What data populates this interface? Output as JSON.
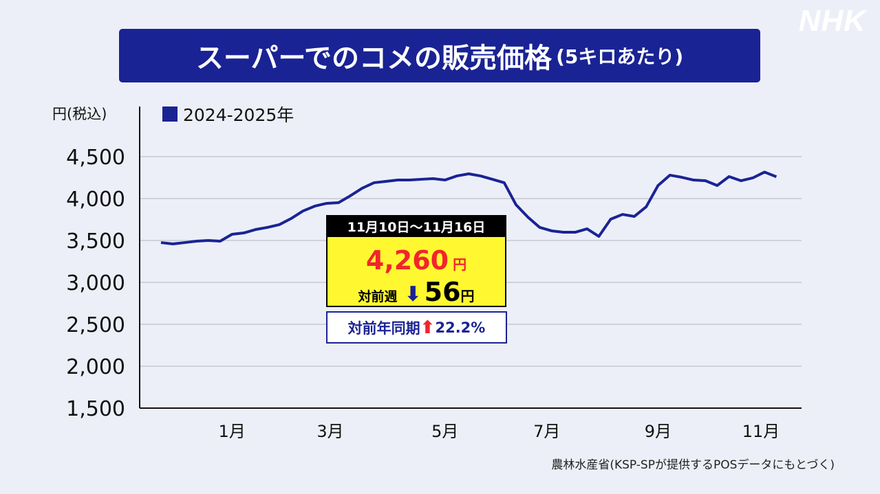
{
  "logo": "NHK",
  "title": {
    "main": "スーパーでのコメの販売価格",
    "sub": "(5キロあたり)"
  },
  "source": "農林水産省(KSP-SPが提供するPOSデータにもとづく)",
  "callout": {
    "period": "11月10日～11月16日",
    "price": "4,260",
    "price_unit": "円",
    "week_label": "対前週",
    "week_change": "56",
    "week_unit": "円",
    "week_direction": "down",
    "year_label": "対前年同期",
    "year_change": "22.2%",
    "year_direction": "up"
  },
  "colors": {
    "line": "#1a2394",
    "title_bg": "#1a2394",
    "highlight": "#f2252c",
    "callout_bg": "#fff830"
  },
  "chart_data": {
    "type": "line",
    "title": "スーパーでのコメの販売価格(5キロあたり)",
    "ylabel": "円(税込)",
    "ylim": [
      1500,
      4500
    ],
    "yticks": [
      1500,
      2000,
      2500,
      3000,
      3500,
      4000,
      4500
    ],
    "ytick_labels": [
      "1,500",
      "2,000",
      "2,500",
      "3,000",
      "3,500",
      "4,000",
      "4,500"
    ],
    "xticks": [
      {
        "label": "1月",
        "index": 6
      },
      {
        "label": "3月",
        "index": 14.3
      },
      {
        "label": "5月",
        "index": 24
      },
      {
        "label": "7月",
        "index": 32.6
      },
      {
        "label": "9月",
        "index": 42
      },
      {
        "label": "11月",
        "index": 50.7
      }
    ],
    "grid": true,
    "legend": "top-left",
    "series": [
      {
        "name": "2024-2025年",
        "values": [
          3475,
          3459,
          3475,
          3492,
          3500,
          3492,
          3574,
          3590,
          3631,
          3656,
          3689,
          3762,
          3852,
          3910,
          3943,
          3951,
          4033,
          4123,
          4189,
          4205,
          4221,
          4221,
          4230,
          4238,
          4221,
          4270,
          4295,
          4270,
          4230,
          4189,
          3926,
          3779,
          3656,
          3615,
          3598,
          3598,
          3639,
          3549,
          3754,
          3811,
          3787,
          3902,
          4156,
          4279,
          4254,
          4221,
          4213,
          4156,
          4262,
          4213,
          4246,
          4316,
          4260
        ]
      }
    ]
  }
}
